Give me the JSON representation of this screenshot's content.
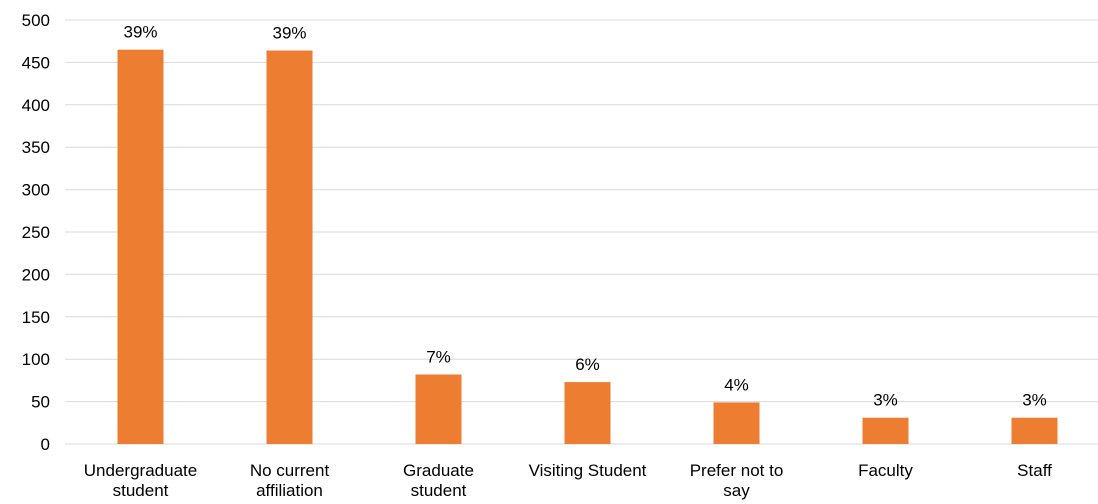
{
  "chart_data": {
    "type": "bar",
    "categories": [
      [
        "Undergraduate",
        "student"
      ],
      [
        "No current",
        "affiliation"
      ],
      [
        "Graduate",
        "student"
      ],
      [
        "Visiting Student"
      ],
      [
        "Prefer not to",
        "say"
      ],
      [
        "Faculty"
      ],
      [
        "Staff"
      ]
    ],
    "values": [
      465,
      464,
      82,
      73,
      49,
      31,
      31
    ],
    "data_labels": [
      "39%",
      "39%",
      "7%",
      "6%",
      "4%",
      "3%",
      "3%"
    ],
    "title": "",
    "xlabel": "",
    "ylabel": "",
    "ylim": [
      0,
      500
    ],
    "yticks": [
      0,
      50,
      100,
      150,
      200,
      250,
      300,
      350,
      400,
      450,
      500
    ],
    "grid": true,
    "legend": "none",
    "colors": {
      "bar": "#ED7D31",
      "grid": "#D9D9D9",
      "text": "#000000"
    }
  }
}
